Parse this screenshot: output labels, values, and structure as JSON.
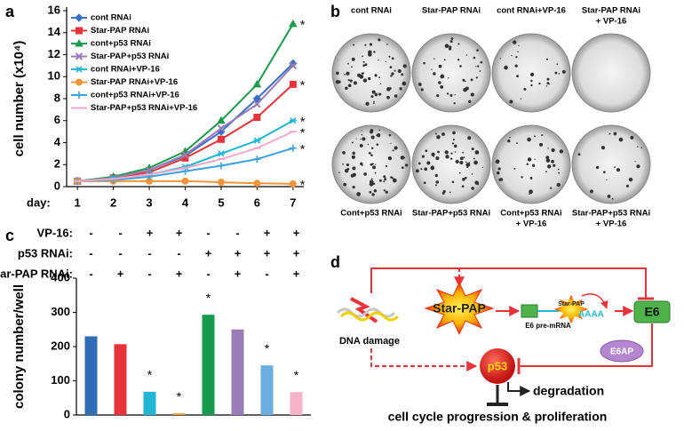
{
  "panel_labels": [
    "a",
    "b",
    "c",
    "d"
  ],
  "chart_data": [
    {
      "type": "line",
      "ylabel": "cell number (x10⁴)",
      "xlabel": "day:",
      "x": [
        1,
        2,
        3,
        4,
        5,
        6,
        7
      ],
      "xlim": [
        0.7,
        7.3
      ],
      "xticks": [
        1,
        2,
        3,
        4,
        5,
        6,
        7
      ],
      "ylim": [
        0,
        16
      ],
      "yticks": [
        0,
        2,
        4,
        6,
        8,
        10,
        12,
        14,
        16
      ],
      "series": [
        {
          "name": "cont RNAi",
          "color": "#3a6fc4",
          "marker": "diamond",
          "values": [
            0.5,
            0.8,
            1.5,
            2.8,
            5.0,
            8.0,
            11.2
          ]
        },
        {
          "name": "Star-PAP RNAi",
          "color": "#e8333a",
          "marker": "square",
          "values": [
            0.5,
            0.8,
            1.3,
            2.6,
            4.3,
            6.3,
            9.3
          ],
          "annotation": "*"
        },
        {
          "name": "cont+p53 RNAi",
          "color": "#1a9a4a",
          "marker": "triangle",
          "values": [
            0.5,
            0.9,
            1.7,
            3.2,
            6.0,
            9.3,
            14.8
          ],
          "annotation": "*"
        },
        {
          "name": "Star-PAP+p53 RNAi",
          "color": "#9a7cb8",
          "marker": "cross",
          "values": [
            0.5,
            0.8,
            1.5,
            2.9,
            5.3,
            7.5,
            11.0
          ]
        },
        {
          "name": "cont RNAi+VP-16",
          "color": "#22b5d4",
          "marker": "star",
          "values": [
            0.5,
            0.7,
            1.1,
            1.8,
            3.0,
            4.2,
            6.0
          ],
          "annotation": "*"
        },
        {
          "name": "Star-PAP RNAi+VP-16",
          "color": "#f0953a",
          "marker": "circle",
          "values": [
            0.5,
            0.5,
            0.5,
            0.5,
            0.4,
            0.3,
            0.25
          ],
          "annotation": "*"
        },
        {
          "name": "cont+p53 RNAi+VP-16",
          "color": "#3aa0e0",
          "marker": "plus",
          "values": [
            0.5,
            0.6,
            0.9,
            1.4,
            1.9,
            2.5,
            3.5
          ],
          "annotation": "*"
        },
        {
          "name": "Star-PAP+p53 RNAi+VP-16",
          "color": "#f5a8c8",
          "marker": "dash",
          "values": [
            0.5,
            0.7,
            1.1,
            1.7,
            2.5,
            3.5,
            5.0
          ],
          "annotation": "*"
        }
      ]
    },
    {
      "type": "bar",
      "ylabel": "colony number/well",
      "categories": [
        null,
        null,
        null,
        null,
        null,
        null,
        null,
        null
      ],
      "values": [
        230,
        207,
        68,
        5,
        293,
        250,
        145,
        67
      ],
      "colors": [
        "#2f6db5",
        "#e8333a",
        "#22b5d4",
        "#f0a030",
        "#169a4b",
        "#9a7cb8",
        "#6aaee0",
        "#f5b3c8"
      ],
      "significance": [
        null,
        null,
        "*",
        "*",
        "*",
        null,
        "*",
        "*"
      ],
      "ylim": [
        0,
        400
      ],
      "yticks": [
        0,
        100,
        200,
        300,
        400
      ],
      "conditions": [
        {
          "label": "VP-16:",
          "signs": [
            "-",
            "-",
            "+",
            "+",
            "-",
            "-",
            "+",
            "+"
          ]
        },
        {
          "label": "p53 RNAi:",
          "signs": [
            "-",
            "-",
            "-",
            "-",
            "+",
            "+",
            "+",
            "+"
          ]
        },
        {
          "label": "Star-PAP RNAi:",
          "signs": [
            "-",
            "+",
            "-",
            "+",
            "-",
            "+",
            "-",
            "+"
          ]
        }
      ]
    }
  ],
  "colony_images": {
    "top": [
      [
        "cont RNAi"
      ],
      [
        "Star-PAP RNAi"
      ],
      [
        "cont RNAi+VP-16"
      ],
      [
        "Star-PAP RNAi",
        "+ VP-16"
      ]
    ],
    "bottom": [
      [
        "Cont+p53 RNAi"
      ],
      [
        "Star-PAP+p53 RNAi"
      ],
      [
        "Cont+p53 RNAi",
        "+ VP-16"
      ],
      [
        "Star-PAP+p53 RNAi",
        "+ VP-16"
      ]
    ]
  },
  "diagram": {
    "dna_damage": "DNA damage",
    "star_pap": "Star-PAP",
    "star_pap_small": "Star-PAP",
    "pre_mrna": "E6 pre-mRNA",
    "polya": "AAAA",
    "e6": "E6",
    "e6ap": "E6AP",
    "p53": "p53",
    "degradation": "degradation",
    "outcome": "cell cycle progression & proliferation"
  }
}
